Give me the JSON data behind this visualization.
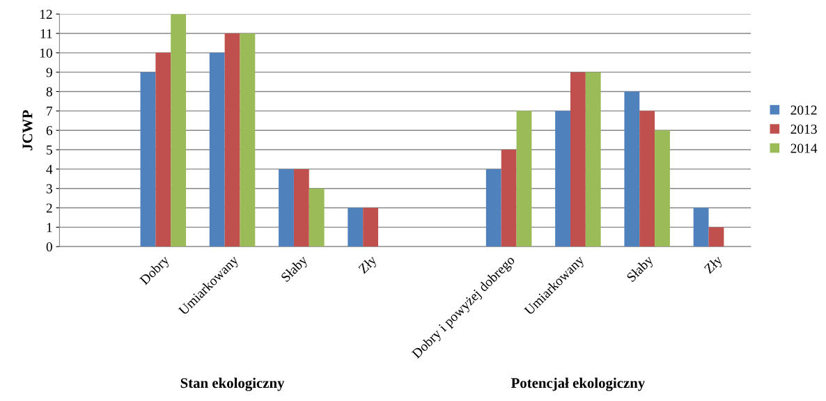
{
  "chart_data": {
    "type": "bar",
    "ylabel": "JCWP",
    "categories": [
      null,
      "Dobry",
      "Umiarkowany",
      "Słaby",
      "Zły",
      null,
      "Dobry i powyżej dobrego",
      "Umiarkowany",
      "Słaby",
      "Zły"
    ],
    "series": [
      {
        "name": "2012",
        "color": "#4f81bd",
        "values": [
          null,
          9,
          10,
          4,
          2,
          null,
          4,
          7,
          8,
          2
        ]
      },
      {
        "name": "2013",
        "color": "#c0504d",
        "values": [
          null,
          10,
          11,
          4,
          2,
          null,
          5,
          9,
          7,
          1
        ]
      },
      {
        "name": "2014",
        "color": "#9bbb59",
        "values": [
          null,
          12,
          11,
          3,
          0,
          null,
          7,
          9,
          6,
          0
        ]
      }
    ],
    "ylim": [
      0,
      12
    ],
    "yticks": [
      0,
      1,
      2,
      3,
      4,
      5,
      6,
      7,
      8,
      9,
      10,
      11,
      12
    ],
    "grid": "y",
    "legend": "right",
    "annotations": [
      "Stan ekologiczny",
      "Potencjał ekologiczny"
    ]
  }
}
